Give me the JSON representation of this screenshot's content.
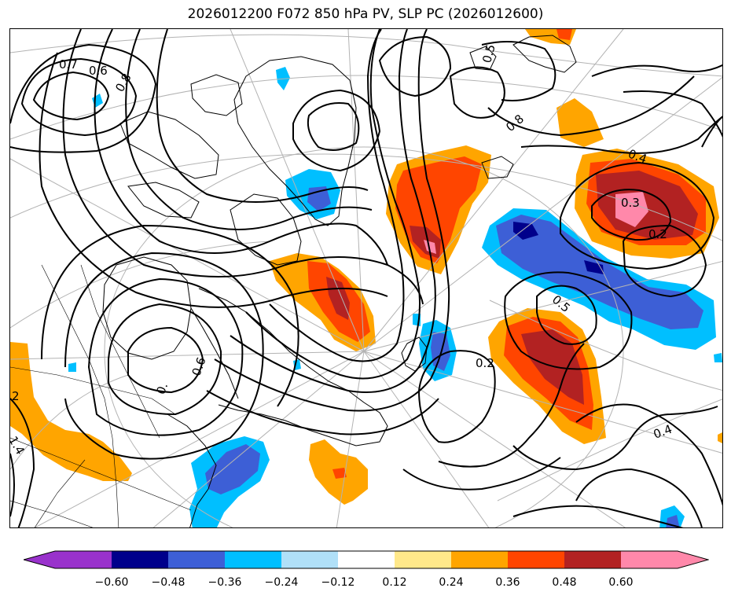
{
  "title": "2026012200 F072 850 hPa PV, SLP PC (2026012600)",
  "colors": {
    "c_n060": "#9932cc",
    "c_n048": "#00008b",
    "c_n036": "#3d5fd6",
    "c_n024": "#00bfff",
    "c_n012": "#b0e0f8",
    "c_0": "#ffffff",
    "c_p012": "#ffe88a",
    "c_p024": "#ffa500",
    "c_p036": "#ff4500",
    "c_p048": "#b22222",
    "c_p060": "#ff88aa"
  },
  "colorbar": {
    "tick_labels": [
      "−0.60",
      "−0.48",
      "−0.36",
      "−0.24",
      "−0.12",
      "0.12",
      "0.24",
      "0.36",
      "0.48",
      "0.60"
    ]
  },
  "contour_labels": {
    "l07": "0.7",
    "l06a": "0.6",
    "l08a": "0.8",
    "l05a": "0.5",
    "l08b": "0.8",
    "l04a": "0.4",
    "l03": "0.3",
    "l02a": "0.2",
    "l05b": "0.5",
    "l02b": "0.2",
    "l04b": "0.4",
    "l06b": "0.6",
    "l0x": "0.",
    "l14": "1.4",
    "l2": "2"
  }
}
